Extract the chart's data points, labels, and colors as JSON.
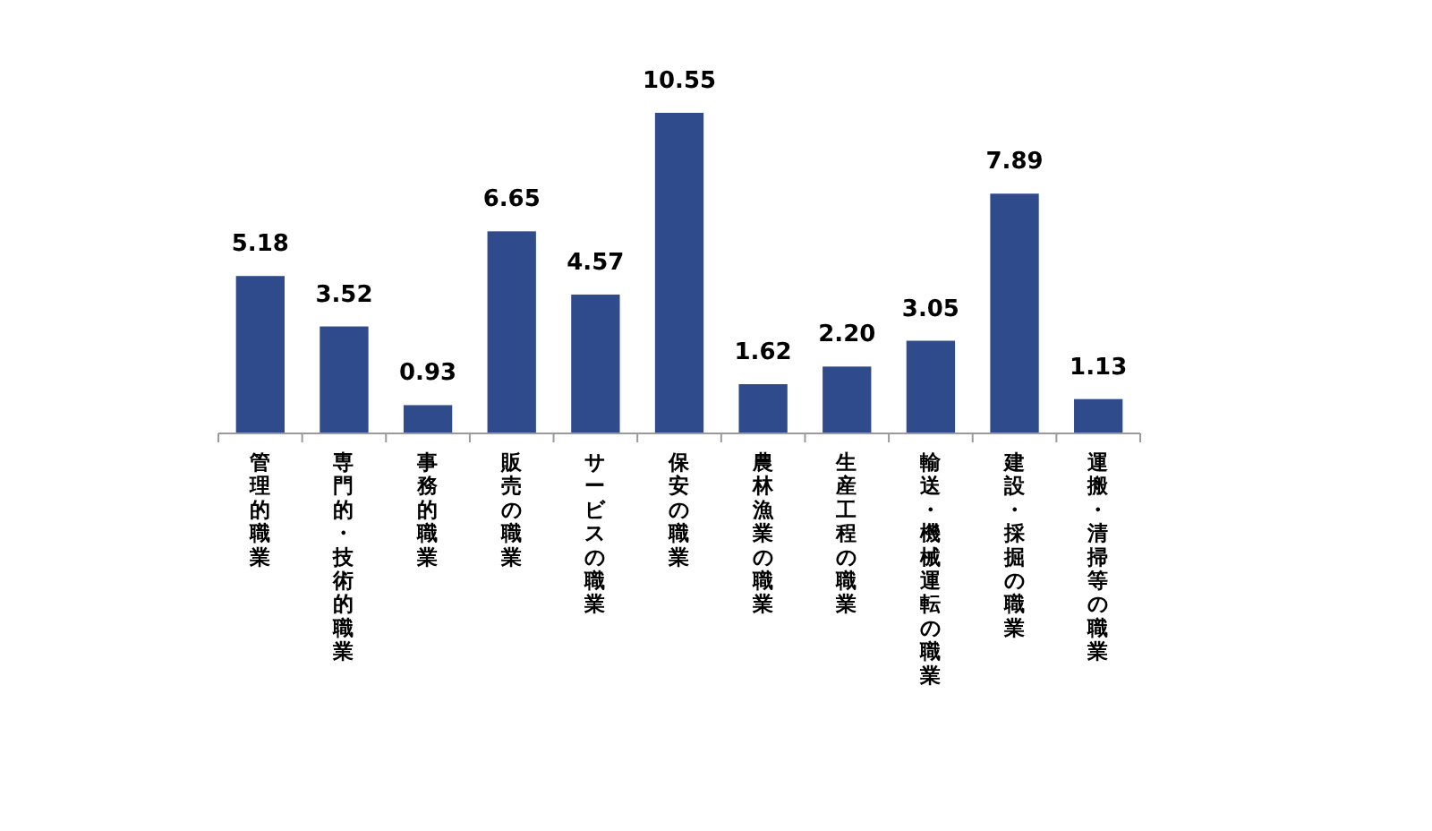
{
  "chart_data": {
    "type": "bar",
    "categories": [
      "管理的職業",
      "専門的・技術的職業",
      "事務的職業",
      "販売の職業",
      "サービスの職業",
      "保安の職業",
      "農林漁業の職業",
      "生産工程の職業",
      "輸送・機械運転の職業",
      "建設・採掘の職業",
      "運搬・清掃等の職業"
    ],
    "values": [
      5.18,
      3.52,
      0.93,
      6.65,
      4.57,
      10.55,
      1.62,
      2.2,
      3.05,
      7.89,
      1.13
    ],
    "value_labels": [
      "5.18",
      "3.52",
      "0.93",
      "6.65",
      "4.57",
      "10.55",
      "1.62",
      "2.20",
      "3.05",
      "7.89",
      "1.13"
    ],
    "color": "#2f4b8c"
  }
}
